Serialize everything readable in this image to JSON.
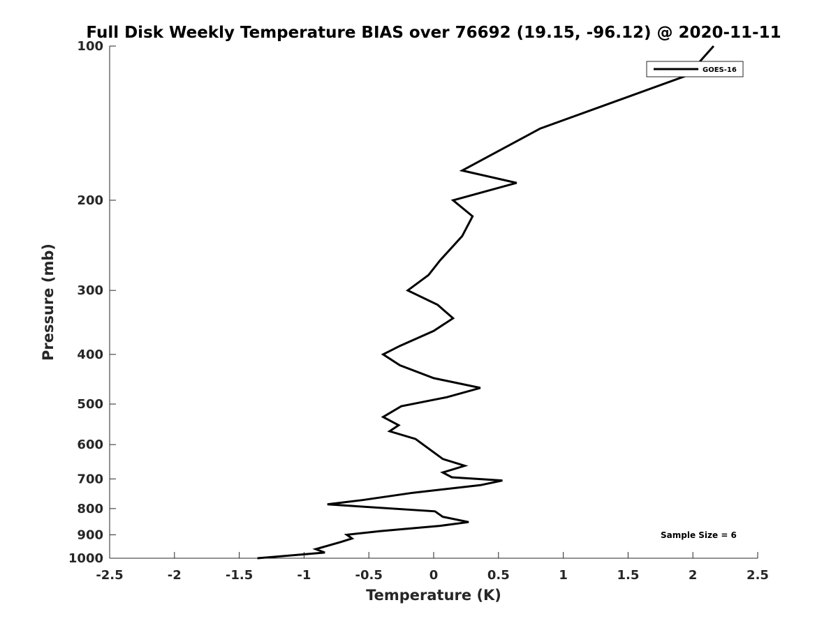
{
  "chart_data": {
    "type": "line",
    "title": "Full Disk Weekly Temperature BIAS over 76692 (19.15, -96.12) @ 2020-11-11",
    "xlabel": "Temperature (K)",
    "ylabel": "Pressure (mb)",
    "xlim": [
      -2.5,
      2.5
    ],
    "ylim": [
      1000,
      100
    ],
    "yscale": "log",
    "x_ticks": [
      "-2.5",
      "-2",
      "-1.5",
      "-1",
      "-0.5",
      "0",
      "0.5",
      "1",
      "1.5",
      "2",
      "2.5"
    ],
    "y_ticks": [
      "100",
      "200",
      "300",
      "400",
      "500",
      "600",
      "700",
      "800",
      "900",
      "1000"
    ],
    "grid": false,
    "legend_position": "top-right",
    "annotation": "Sample Size = 6",
    "series": [
      {
        "name": "GOES-16",
        "color": "#000000",
        "points": [
          {
            "x": 2.16,
            "p": 100
          },
          {
            "x": 1.96,
            "p": 114
          },
          {
            "x": 0.82,
            "p": 145
          },
          {
            "x": 0.22,
            "p": 175
          },
          {
            "x": 0.64,
            "p": 185
          },
          {
            "x": 0.15,
            "p": 200
          },
          {
            "x": 0.3,
            "p": 215
          },
          {
            "x": 0.22,
            "p": 235
          },
          {
            "x": 0.05,
            "p": 262
          },
          {
            "x": -0.04,
            "p": 280
          },
          {
            "x": -0.2,
            "p": 300
          },
          {
            "x": 0.03,
            "p": 320
          },
          {
            "x": 0.15,
            "p": 340
          },
          {
            "x": 0.0,
            "p": 360
          },
          {
            "x": -0.26,
            "p": 385
          },
          {
            "x": -0.39,
            "p": 400
          },
          {
            "x": -0.26,
            "p": 420
          },
          {
            "x": 0.0,
            "p": 445
          },
          {
            "x": 0.36,
            "p": 465
          },
          {
            "x": 0.1,
            "p": 485
          },
          {
            "x": -0.25,
            "p": 505
          },
          {
            "x": -0.39,
            "p": 530
          },
          {
            "x": -0.27,
            "p": 550
          },
          {
            "x": -0.34,
            "p": 565
          },
          {
            "x": -0.14,
            "p": 585
          },
          {
            "x": 0.07,
            "p": 640
          },
          {
            "x": 0.24,
            "p": 660
          },
          {
            "x": 0.07,
            "p": 680
          },
          {
            "x": 0.14,
            "p": 695
          },
          {
            "x": 0.53,
            "p": 705
          },
          {
            "x": 0.36,
            "p": 720
          },
          {
            "x": -0.16,
            "p": 745
          },
          {
            "x": -0.55,
            "p": 770
          },
          {
            "x": -0.82,
            "p": 785
          },
          {
            "x": 0.01,
            "p": 810
          },
          {
            "x": 0.07,
            "p": 830
          },
          {
            "x": 0.27,
            "p": 850
          },
          {
            "x": 0.04,
            "p": 865
          },
          {
            "x": -0.41,
            "p": 885
          },
          {
            "x": -0.67,
            "p": 900
          },
          {
            "x": -0.63,
            "p": 915
          },
          {
            "x": -0.72,
            "p": 930
          },
          {
            "x": -0.91,
            "p": 960
          },
          {
            "x": -0.84,
            "p": 975
          },
          {
            "x": -1.36,
            "p": 1000
          }
        ]
      }
    ]
  }
}
